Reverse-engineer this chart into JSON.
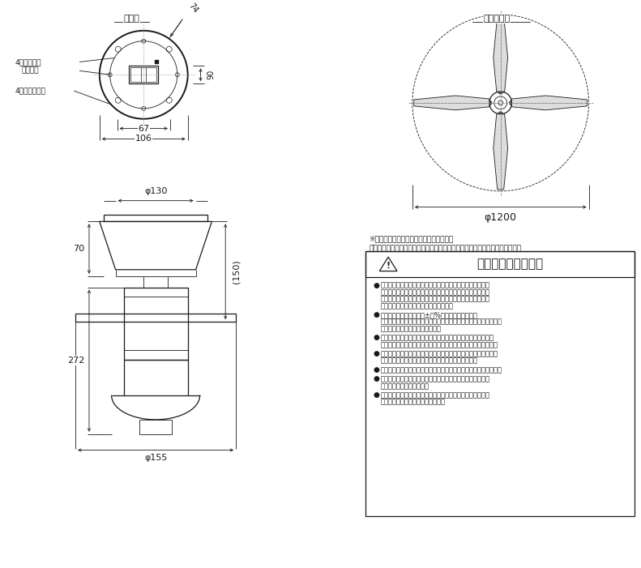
{
  "bg_color": "#ffffff",
  "line_color": "#1a1a1a",
  "title_top_left": "取付部",
  "title_top_right": "羽根配置図",
  "dim_74": "74",
  "dim_90": "90",
  "dim_67": "67",
  "dim_106": "106",
  "dim_130": "φ130",
  "dim_155": "φ155",
  "dim_70": "70",
  "dim_272": "272",
  "dim_150": "(150)",
  "dim_1200": "φ1200",
  "label_4_hole": "4－取付用穴",
  "label_power_hole": "電源用穴",
  "label_screw_hole": "4－木ねじ用穴",
  "note1": "※この器具はチャンネル設定できません．",
  "note2": "　一室２台以上でご使用する場合は個別操作できませんのでご注意ください．",
  "safety_title": "安全に関するご注意",
  "bullet1_line1": "　この器具は，一般通常環境の屋内天井直付専用器具です．",
  "bullet1_line2": "　一般通常環境以外の所、傾斜天井、屋外、湿気の多い所、",
  "bullet1_line3": "　水気のかかる所、壁面、床面では使用しないでください、",
  "bullet1_line4": "　落下・感電・火災の原因になります．",
  "bullet2_line1": "　電源電圧は、定格電圧±６%内でご使用下さい．",
  "bullet2_line2": "　また、電源周波数は器具銘板に従って正しく使用してください、",
  "bullet2_line3": "　感電・火災の原因になります．",
  "bullet3_line1": "　この器具は木ねじ取付専用器具です．必ず木ねじ（４本）で",
  "bullet3_line2": "　補強材のある位置に取付けて下さい．落下の原因になります．",
  "bullet4_line1": "　施工は、必ずブレーカーを切ってから行ってください、不意に",
  "bullet4_line2": "　動作して、けがをしたり、感電の原因になります．",
  "bullet5_line1": "　運転中は、羽根に触れないでください、けがの原因になります．",
  "bullet6_line1": "　長時間、強い風にあたらないようにしてください、健康を",
  "bullet6_line2": "　害することがあります．",
  "bullet7_line1": "　羽根が壊れた時は、全数取り替えてください、振動のため",
  "bullet7_line2": "　落下し、けがの原因になります．"
}
